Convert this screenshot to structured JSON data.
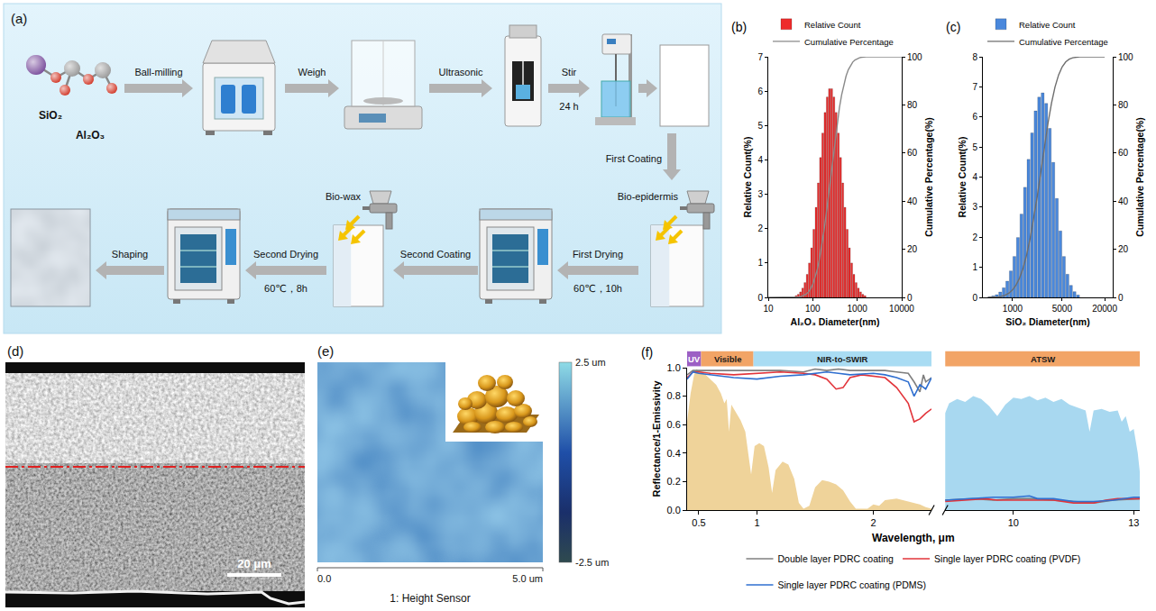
{
  "figure": {
    "a": {
      "panel": "(a)",
      "materials": [
        "SiO₂",
        "Al₂O₃"
      ],
      "steps": [
        {
          "label": "Ball-milling"
        },
        {
          "label": "Weigh"
        },
        {
          "label": "Ultrasonic"
        },
        {
          "label": "Stir",
          "note": "24 h"
        },
        {
          "label": "First Coating",
          "material": "Bio-epidermis"
        },
        {
          "label": "First Drying",
          "note": "60℃，10h"
        },
        {
          "label": "Second Coating",
          "material": "Bio-wax"
        },
        {
          "label": "Second Drying",
          "note": "60℃，8h"
        },
        {
          "label": "Shaping"
        }
      ]
    },
    "d": {
      "panel": "(d)",
      "scale_bar": "20 μm"
    },
    "e": {
      "panel": "(e)",
      "caption": "1: Height Sensor",
      "x_range": [
        0,
        5
      ],
      "x_ticks": [
        {
          "value": 0,
          "label": "0.0"
        },
        {
          "value": 5,
          "label": "5.0 um"
        }
      ],
      "colorbar": {
        "range": [
          -2.5,
          2.5
        ],
        "ticks": [
          {
            "value": 2.5,
            "label": "2.5 um"
          },
          {
            "value": -2.5,
            "label": "-2.5 um"
          }
        ]
      }
    }
  },
  "chart_data": [
    {
      "panel": "(b)",
      "type": "histogram",
      "log": "x",
      "grid": false,
      "legend": "top",
      "x_label": "Al₂O₃ Diameter(nm)",
      "y_label": "Relative Count(%)",
      "y2_label": "Cumulative Percentage(%)",
      "xlim": [
        10,
        10000
      ],
      "xticks": [
        10,
        100,
        1000,
        10000
      ],
      "ylim": [
        0,
        7
      ],
      "yticks": [
        0,
        1,
        2,
        3,
        4,
        5,
        6,
        7
      ],
      "y2lim": [
        0,
        100
      ],
      "y2ticks": [
        0,
        20,
        40,
        60,
        80,
        100
      ],
      "series": [
        {
          "name": "Relative Count",
          "type": "bar",
          "color": "#ee2b2b",
          "bins": [
            39.8,
            44.7,
            50.1,
            56.2,
            63.1,
            70.8,
            79.4,
            89.1,
            100,
            112,
            126,
            141,
            158,
            178,
            200,
            224,
            251,
            282,
            316,
            355,
            398,
            447,
            501,
            562,
            631,
            708,
            794,
            891,
            1000,
            1122,
            1259,
            1413,
            1585
          ],
          "values": [
            0.05,
            0.09,
            0.16,
            0.27,
            0.43,
            0.67,
            1,
            1.44,
            1.98,
            2.62,
            3.33,
            4.07,
            4.78,
            5.38,
            5.83,
            6.07,
            6.07,
            5.83,
            5.38,
            4.78,
            4.07,
            3.33,
            2.62,
            1.98,
            1.44,
            1,
            0.67,
            0.43,
            0.27,
            0.16,
            0.09,
            0.05
          ]
        },
        {
          "name": "Cumulative Percentage",
          "type": "line",
          "color": "#8a8a8a",
          "axis": "y2",
          "x": [
            10,
            39.8,
            44.7,
            50.1,
            56.2,
            63.1,
            70.8,
            79.4,
            89.1,
            100,
            112,
            126,
            141,
            158,
            178,
            200,
            224,
            251,
            282,
            316,
            355,
            398,
            447,
            501,
            562,
            631,
            708,
            794,
            891,
            1000,
            1122,
            1259,
            1413,
            1585,
            10000
          ],
          "values": [
            0,
            0,
            0.07,
            0.18,
            0.39,
            0.75,
            1.31,
            2.19,
            3.5,
            5.38,
            7.98,
            11.41,
            15.77,
            21.1,
            27.36,
            34.41,
            42.05,
            50,
            57.95,
            65.59,
            72.64,
            78.9,
            84.23,
            88.59,
            92.02,
            94.62,
            96.5,
            97.81,
            98.69,
            99.25,
            99.61,
            99.82,
            99.93,
            100,
            100
          ]
        }
      ]
    },
    {
      "panel": "(c)",
      "type": "histogram",
      "log": "x",
      "grid": false,
      "legend": "top",
      "x_label": "SiO₂ Diameter(nm)",
      "y_label": "Relative Count(%)",
      "y2_label": "Cumulative Percentage(%)",
      "xlim": [
        380,
        26000
      ],
      "xticks": [
        1000,
        5000,
        20000
      ],
      "ylim": [
        0,
        8
      ],
      "yticks": [
        0,
        1,
        2,
        3,
        4,
        5,
        6,
        7,
        8
      ],
      "y2lim": [
        0,
        100
      ],
      "y2ticks": [
        0,
        20,
        40,
        60,
        80,
        100
      ],
      "series": [
        {
          "name": "Relative Count",
          "type": "bar",
          "color": "#4a88dc",
          "bins": [
            447,
            501,
            562,
            631,
            708,
            794,
            891,
            1000,
            1122,
            1259,
            1413,
            1585,
            1778,
            1995,
            2239,
            2512,
            2818,
            3162,
            3548,
            3981,
            4467,
            5012,
            5623,
            6310,
            7079,
            7943,
            8913
          ],
          "values": [
            0.02,
            0.05,
            0.09,
            0.18,
            0.32,
            0.54,
            0.88,
            1.36,
            1.99,
            2.77,
            3.66,
            4.59,
            5.47,
            6.2,
            6.66,
            6.8,
            6.45,
            5.62,
            4.49,
            3.29,
            2.21,
            1.36,
            0.77,
            0.4,
            0.19,
            0.08
          ]
        },
        {
          "name": "Cumulative Percentage",
          "type": "line",
          "color": "#6e6e6e",
          "axis": "y2",
          "x": [
            447,
            501,
            562,
            631,
            708,
            794,
            891,
            1000,
            1122,
            1259,
            1413,
            1585,
            1778,
            1995,
            2239,
            2512,
            2818,
            3162,
            3548,
            3981,
            4467,
            5012,
            5623,
            6310,
            7079,
            7943,
            8913,
            20000
          ],
          "values": [
            0,
            0.03,
            0.11,
            0.24,
            0.51,
            0.99,
            1.81,
            3.13,
            5.18,
            8.17,
            12.34,
            17.85,
            24.76,
            32.99,
            42.32,
            52.35,
            62.58,
            72.29,
            80.75,
            87.51,
            92.46,
            95.79,
            97.83,
            98.99,
            99.59,
            99.88,
            100,
            100
          ]
        }
      ]
    },
    {
      "panel": "(f)",
      "type": "line",
      "grid": false,
      "legend": "bottom",
      "x_label": "Wavelength, μm",
      "y_label": "Reflectance/1-Emissivity",
      "xlim": [
        0.4,
        2.5
      ],
      "xticks": [
        0.5,
        1,
        2
      ],
      "x2lim": [
        8.3,
        13.15
      ],
      "x2ticks": [
        10,
        13
      ],
      "ylim": [
        0,
        1
      ],
      "yticks": [
        {
          "value": 0,
          "label": "0.0"
        },
        0.2,
        0.4,
        0.6,
        0.8,
        {
          "value": 1,
          "label": "1.0"
        }
      ],
      "bands": [
        {
          "label": "UV",
          "range": [
            0.4,
            0.52
          ],
          "color": "#9c5fc4"
        },
        {
          "label": "Visible",
          "range": [
            0.52,
            0.97
          ],
          "color": "#f2a466"
        },
        {
          "label": "NIR-to-SWIR",
          "range": [
            0.97,
            2.5
          ],
          "color": "#a9dcf3"
        },
        {
          "label": "ATSW",
          "axis": "x2",
          "range": [
            8.3,
            13.15
          ],
          "color": "#f2a466"
        }
      ],
      "areas": [
        {
          "color": "#efd39a",
          "x": [
            0.4,
            0.43,
            0.46,
            0.48,
            0.5,
            0.53,
            0.56,
            0.6,
            0.65,
            0.69,
            0.72,
            0.74,
            0.76,
            0.78,
            0.82,
            0.86,
            0.9,
            0.93,
            0.95,
            0.98,
            1.02,
            1.06,
            1.1,
            1.13,
            1.16,
            1.22,
            1.27,
            1.32,
            1.36,
            1.4,
            1.45,
            1.5,
            1.56,
            1.62,
            1.68,
            1.74,
            1.8,
            1.85,
            1.95,
            2,
            2.05,
            2.1,
            2.2,
            2.3,
            2.4,
            2.45,
            2.5
          ],
          "values": [
            0.62,
            0.82,
            0.95,
            0.99,
            0.98,
            0.97,
            0.95,
            0.92,
            0.88,
            0.82,
            0.75,
            0.78,
            0.55,
            0.74,
            0.68,
            0.63,
            0.55,
            0.35,
            0.25,
            0.45,
            0.47,
            0.45,
            0.3,
            0.12,
            0.28,
            0.34,
            0.32,
            0.22,
            0.05,
            0.01,
            0.03,
            0.16,
            0.21,
            0.2,
            0.18,
            0.14,
            0.06,
            0.01,
            0.01,
            0.04,
            0.03,
            0.07,
            0.08,
            0.06,
            0.04,
            0.02,
            0.01
          ]
        },
        {
          "color": "#a8d8f0",
          "axis": "x2",
          "x": [
            8.3,
            8.4,
            8.6,
            8.8,
            9,
            9.2,
            9.4,
            9.6,
            9.8,
            10,
            10.2,
            10.4,
            10.6,
            10.8,
            11,
            11.2,
            11.4,
            11.6,
            11.8,
            11.9,
            12,
            12.2,
            12.4,
            12.6,
            12.7,
            12.8,
            12.9,
            13,
            13.1,
            13.15
          ],
          "values": [
            0.68,
            0.75,
            0.78,
            0.76,
            0.8,
            0.78,
            0.73,
            0.66,
            0.74,
            0.79,
            0.78,
            0.8,
            0.77,
            0.79,
            0.76,
            0.78,
            0.74,
            0.72,
            0.7,
            0.55,
            0.7,
            0.71,
            0.69,
            0.7,
            0.62,
            0.66,
            0.55,
            0.57,
            0.4,
            0.27
          ]
        }
      ],
      "series": [
        {
          "name": "Double layer PDRC coating",
          "color": "#7f7f7f",
          "x": [
            0.4,
            0.45,
            0.5,
            0.6,
            0.8,
            1,
            1.2,
            1.4,
            1.5,
            1.6,
            1.7,
            1.8,
            2,
            2.1,
            2.2,
            2.3,
            2.35,
            2.4,
            2.43,
            2.45,
            2.5
          ],
          "values": [
            0.95,
            0.98,
            0.98,
            0.98,
            0.98,
            0.98,
            0.98,
            0.97,
            0.99,
            0.98,
            0.99,
            0.98,
            0.98,
            0.98,
            0.97,
            0.96,
            0.9,
            0.83,
            0.95,
            0.9,
            0.93
          ],
          "x2": [
            8.3,
            9,
            9.5,
            10,
            10.5,
            11,
            11.5,
            12,
            12.5,
            13,
            13.15
          ],
          "values2": [
            0.07,
            0.08,
            0.07,
            0.08,
            0.08,
            0.07,
            0.06,
            0.05,
            0.07,
            0.08,
            0.08
          ]
        },
        {
          "name": "Single layer PDRC coating (PVDF)",
          "color": "#e2343a",
          "x": [
            0.4,
            0.45,
            0.5,
            0.6,
            0.8,
            1,
            1.2,
            1.4,
            1.5,
            1.6,
            1.68,
            1.74,
            1.8,
            1.9,
            2,
            2.1,
            2.2,
            2.3,
            2.35,
            2.4,
            2.45,
            2.5
          ],
          "values": [
            0.93,
            0.97,
            0.97,
            0.96,
            0.95,
            0.96,
            0.97,
            0.96,
            0.95,
            0.92,
            0.85,
            0.86,
            0.93,
            0.95,
            0.94,
            0.93,
            0.86,
            0.75,
            0.62,
            0.64,
            0.68,
            0.71
          ],
          "x2": [
            8.3,
            8.8,
            9.3,
            9.6,
            10,
            10.5,
            11,
            11.5,
            12,
            12.3,
            12.6,
            13,
            13.15
          ],
          "values2": [
            0.06,
            0.07,
            0.08,
            0.07,
            0.07,
            0.07,
            0.07,
            0.05,
            0.05,
            0.07,
            0.08,
            0.08,
            0.08
          ]
        },
        {
          "name": "Single layer PDRC coating (PDMS)",
          "color": "#2f6fd0",
          "x": [
            0.4,
            0.45,
            0.5,
            0.6,
            0.8,
            1,
            1.2,
            1.4,
            1.6,
            1.7,
            1.8,
            2,
            2.1,
            2.2,
            2.3,
            2.35,
            2.4,
            2.45,
            2.5
          ],
          "values": [
            0.92,
            0.97,
            0.96,
            0.95,
            0.93,
            0.92,
            0.94,
            0.95,
            0.97,
            0.96,
            0.95,
            0.96,
            0.95,
            0.93,
            0.9,
            0.8,
            0.88,
            0.85,
            0.93
          ],
          "x2": [
            8.3,
            8.8,
            9.5,
            10,
            10.4,
            10.6,
            11,
            11.5,
            12,
            12.5,
            13,
            13.15
          ],
          "values2": [
            0.07,
            0.08,
            0.09,
            0.09,
            0.1,
            0.08,
            0.08,
            0.06,
            0.06,
            0.07,
            0.09,
            0.09
          ]
        }
      ]
    }
  ]
}
